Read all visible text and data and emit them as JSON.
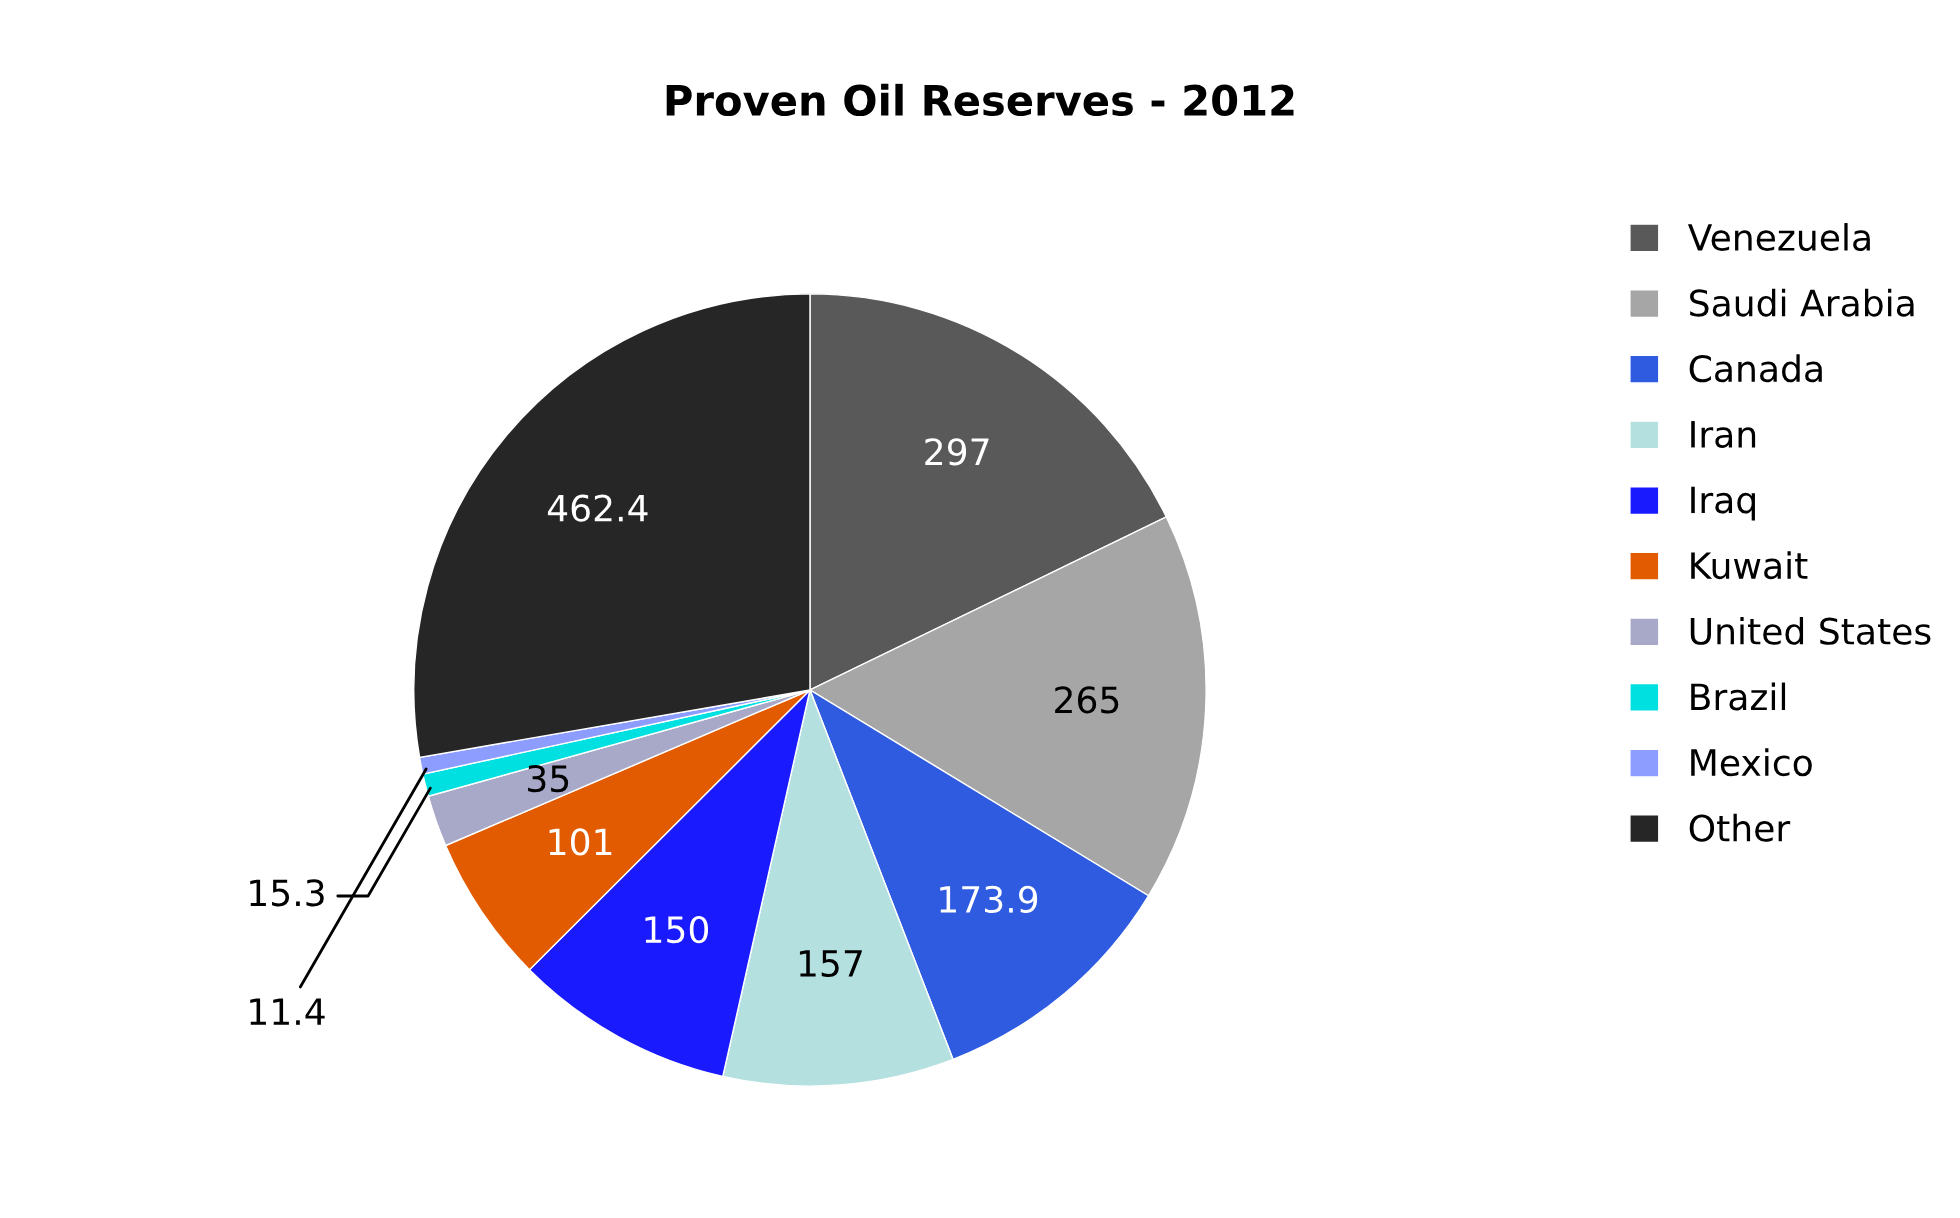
{
  "chart_data": {
    "type": "pie",
    "title": "Proven Oil Reserves - 2012",
    "categories": [
      "Venezuela",
      "Saudi Arabia",
      "Canada",
      "Iran",
      "Iraq",
      "Kuwait",
      "United States",
      "Brazil",
      "Mexico",
      "Other"
    ],
    "values": [
      297,
      265,
      173.9,
      157,
      150,
      101,
      35,
      15.3,
      11.4,
      462.4
    ],
    "colors": [
      "#595959",
      "#a6a6a6",
      "#2e5be0",
      "#b4e0e0",
      "#1a1aff",
      "#e35b00",
      "#a8a8c8",
      "#00e0e0",
      "#8c9cff",
      "#262626"
    ],
    "data_labels": true,
    "legend": "right"
  }
}
